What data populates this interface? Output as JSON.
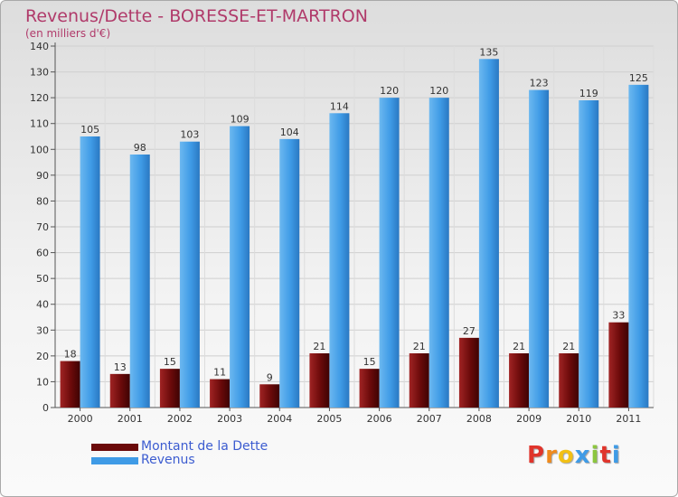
{
  "chart_data": {
    "type": "bar",
    "title": "Revenus/Dette - BORESSE-ET-MARTRON",
    "subtitle": "(en milliers d'€)",
    "categories": [
      "2000",
      "2001",
      "2002",
      "2003",
      "2004",
      "2005",
      "2006",
      "2007",
      "2008",
      "2009",
      "2010",
      "2011"
    ],
    "series": [
      {
        "name": "Montant de la Dette",
        "color": "#6b0a0a",
        "values": [
          18,
          13,
          15,
          11,
          9,
          21,
          15,
          21,
          27,
          21,
          21,
          33
        ]
      },
      {
        "name": "Revenus",
        "color": "#3f9be6",
        "values": [
          105,
          98,
          103,
          109,
          104,
          114,
          120,
          120,
          135,
          123,
          119,
          125
        ]
      }
    ],
    "ylim": [
      0,
      140
    ],
    "yticks": [
      0,
      10,
      20,
      30,
      40,
      50,
      60,
      70,
      80,
      90,
      100,
      110,
      120,
      130,
      140
    ],
    "grid": true,
    "legend_position": "bottom-left"
  },
  "logo": {
    "text": "Proxiti",
    "name": "proxiti-logo"
  }
}
